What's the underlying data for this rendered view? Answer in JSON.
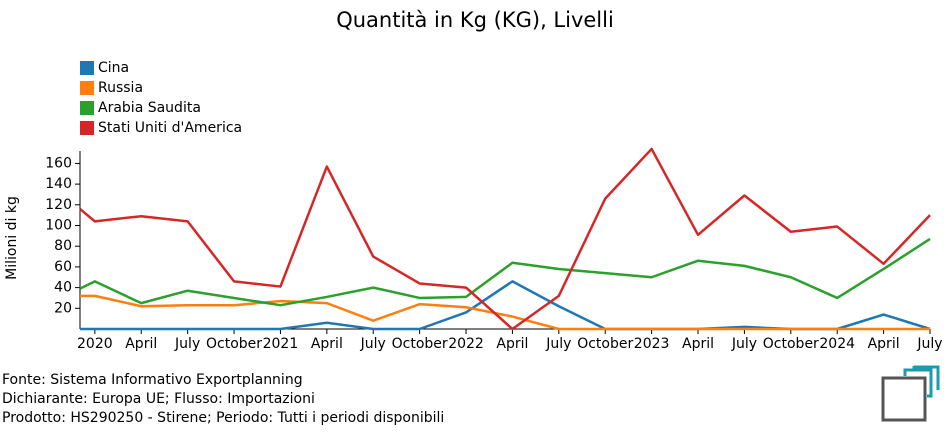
{
  "chart_data": {
    "type": "line",
    "title": "Quantità in Kg (KG), Livelli",
    "y_label": "Milioni di kg",
    "x": [
      2019.92,
      2020,
      2020.25,
      2020.5,
      2020.75,
      2021,
      2021.25,
      2021.5,
      2021.75,
      2022,
      2022.25,
      2022.5,
      2022.75,
      2023,
      2023.25,
      2023.5,
      2023.75,
      2024,
      2024.25,
      2024.5
    ],
    "series": [
      {
        "name": "Cina",
        "color": "#1f77b4",
        "values": [
          0,
          0,
          0,
          0,
          0,
          0,
          6,
          0,
          0,
          16,
          46,
          22,
          0,
          0,
          0,
          2,
          0,
          0,
          14,
          0
        ]
      },
      {
        "name": "Russia",
        "color": "#ff7f0e",
        "values": [
          32,
          32,
          22,
          23,
          23,
          27,
          25,
          8,
          24,
          21,
          12,
          0,
          0,
          0,
          0,
          0,
          0,
          0,
          0,
          0
        ]
      },
      {
        "name": "Arabia Saudita",
        "color": "#2ca02c",
        "values": [
          39,
          46,
          25,
          37,
          30,
          23,
          31,
          40,
          30,
          31,
          64,
          58,
          54,
          50,
          66,
          61,
          50,
          30,
          58,
          87
        ]
      },
      {
        "name": "Stati Uniti d'America",
        "color": "#d62728",
        "values": [
          116,
          104,
          109,
          104,
          46,
          41,
          157,
          70,
          44,
          40,
          0,
          32,
          126,
          174,
          91,
          129,
          94,
          99,
          63,
          110
        ]
      }
    ],
    "xlim": [
      2019.92,
      2024.5
    ],
    "xticks": [
      {
        "value": 2020,
        "label": "2020"
      },
      {
        "value": 2020.25,
        "label": "April"
      },
      {
        "value": 2020.5,
        "label": "July"
      },
      {
        "value": 2020.75,
        "label": "October"
      },
      {
        "value": 2021,
        "label": "2021"
      },
      {
        "value": 2021.25,
        "label": "April"
      },
      {
        "value": 2021.5,
        "label": "July"
      },
      {
        "value": 2021.75,
        "label": "October"
      },
      {
        "value": 2022,
        "label": "2022"
      },
      {
        "value": 2022.25,
        "label": "April"
      },
      {
        "value": 2022.5,
        "label": "July"
      },
      {
        "value": 2022.75,
        "label": "October"
      },
      {
        "value": 2023,
        "label": "2023"
      },
      {
        "value": 2023.25,
        "label": "April"
      },
      {
        "value": 2023.5,
        "label": "July"
      },
      {
        "value": 2023.75,
        "label": "October"
      },
      {
        "value": 2024,
        "label": "2024"
      },
      {
        "value": 2024.25,
        "label": "April"
      },
      {
        "value": 2024.5,
        "label": "July"
      }
    ],
    "ylim": [
      0,
      172
    ],
    "yticks": [
      20,
      40,
      60,
      80,
      100,
      120,
      140,
      160
    ],
    "legend": "top-left",
    "footer": [
      "Fonte: Sistema Informativo Exportplanning",
      "Dichiarante: Europa UE; Flusso: Importazioni",
      "Prodotto: HS290250 - Stirene; Periodo: Tutti i periodi disponibili"
    ]
  }
}
